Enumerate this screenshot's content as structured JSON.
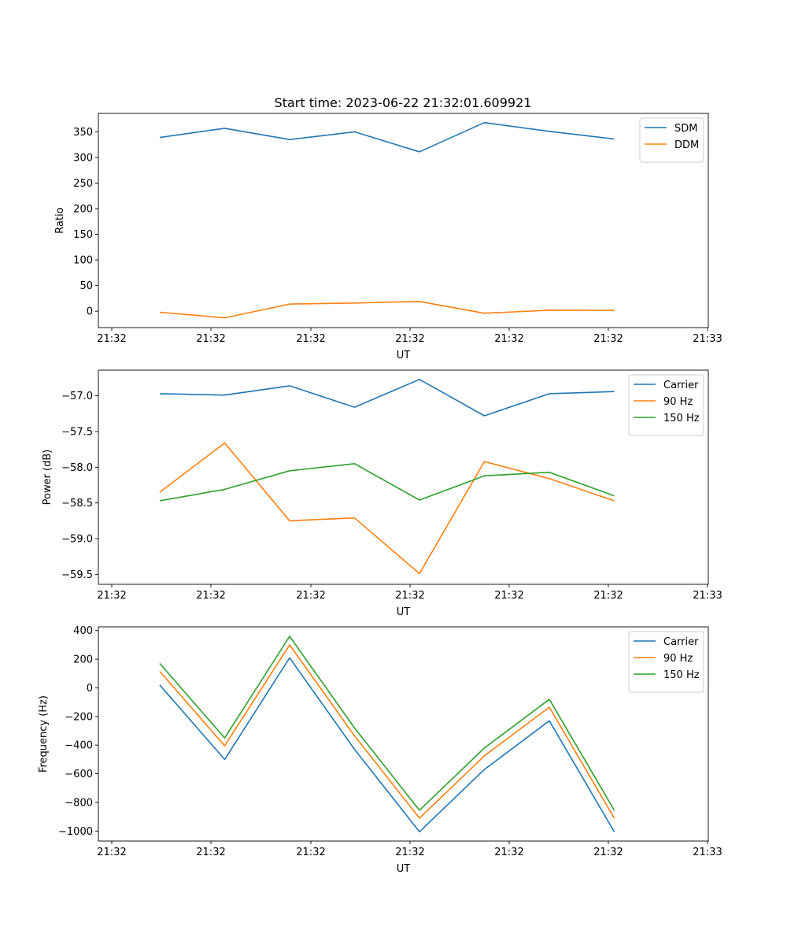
{
  "title": "Start time: 2023-06-22 21:32:01.609921",
  "colors": {
    "blue": "#1f77b4",
    "orange": "#ff7f0e",
    "green": "#2ca02c"
  },
  "chart_data": [
    {
      "type": "line",
      "title": "Start time: 2023-06-22 21:32:01.609921",
      "xlabel": "UT",
      "ylabel": "Ratio",
      "xtick_labels": [
        "21:32",
        "21:32",
        "21:32",
        "21:32",
        "21:32",
        "21:32",
        "21:33"
      ],
      "yticks": [
        0,
        50,
        100,
        150,
        200,
        250,
        300,
        350
      ],
      "ytick_labels": [
        "0",
        "50",
        "100",
        "150",
        "200",
        "250",
        "300",
        "350"
      ],
      "ylim": [
        -32,
        386
      ],
      "grid": false,
      "legend": "top-right",
      "series": [
        {
          "name": "SDM",
          "color": "#1f77b4",
          "values": [
            339,
            357,
            335,
            350,
            311,
            368,
            351,
            336
          ]
        },
        {
          "name": "DDM",
          "color": "#ff7f0e",
          "values": [
            -2,
            -13,
            14,
            16,
            19,
            -4,
            2,
            1.5
          ]
        }
      ]
    },
    {
      "type": "line",
      "xlabel": "UT",
      "ylabel": "Power (dB)",
      "xtick_labels": [
        "21:32",
        "21:32",
        "21:32",
        "21:32",
        "21:32",
        "21:32",
        "21:33"
      ],
      "yticks": [
        -57.0,
        -57.5,
        -58.0,
        -58.5,
        -59.0,
        -59.5
      ],
      "ytick_labels": [
        "−57.0",
        "−57.5",
        "−58.0",
        "−58.5",
        "−59.0",
        "−59.5"
      ],
      "ylim": [
        -59.64,
        -56.64
      ],
      "grid": false,
      "legend": "top-right",
      "series": [
        {
          "name": "Carrier",
          "color": "#1f77b4",
          "values": [
            -56.97,
            -56.99,
            -56.86,
            -57.16,
            -56.77,
            -57.28,
            -56.97,
            -56.94
          ]
        },
        {
          "name": "90 Hz",
          "color": "#ff7f0e",
          "values": [
            -58.35,
            -57.66,
            -58.75,
            -58.71,
            -59.49,
            -57.92,
            -58.16,
            -58.47
          ]
        },
        {
          "name": "150 Hz",
          "color": "#2ca02c",
          "values": [
            -58.47,
            -58.31,
            -58.05,
            -57.95,
            -58.46,
            -58.12,
            -58.07,
            -58.4
          ]
        }
      ]
    },
    {
      "type": "line",
      "xlabel": "UT",
      "ylabel": "Frequency (Hz)",
      "xtick_labels": [
        "21:32",
        "21:32",
        "21:32",
        "21:32",
        "21:32",
        "21:32",
        "21:33"
      ],
      "yticks": [
        400,
        200,
        0,
        -200,
        -400,
        -600,
        -800,
        -1000
      ],
      "ytick_labels": [
        "400",
        "200",
        "0",
        "−200",
        "−400",
        "−600",
        "−800",
        "−1000"
      ],
      "ylim": [
        -1070,
        426
      ],
      "grid": false,
      "legend": "top-right",
      "series": [
        {
          "name": "Carrier",
          "color": "#1f77b4",
          "values": [
            20,
            -500,
            210,
            -430,
            -1005,
            -570,
            -230,
            -1005
          ]
        },
        {
          "name": "90 Hz",
          "color": "#ff7f0e",
          "values": [
            115,
            -405,
            300,
            -335,
            -910,
            -475,
            -135,
            -910
          ]
        },
        {
          "name": "150 Hz",
          "color": "#2ca02c",
          "values": [
            170,
            -350,
            360,
            -280,
            -855,
            -420,
            -80,
            -855
          ]
        }
      ]
    }
  ]
}
